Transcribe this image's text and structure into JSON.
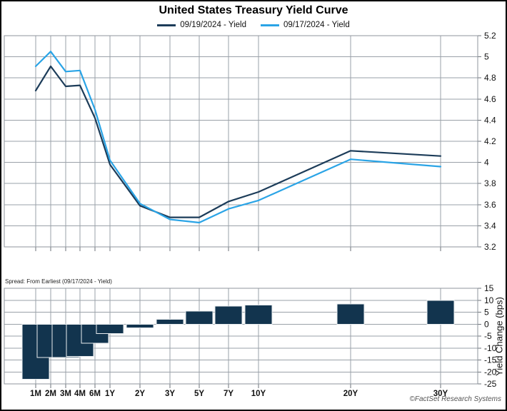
{
  "title": "United States Treasury Yield Curve",
  "legend": [
    {
      "label": "09/19/2024 - Yield",
      "color": "#1C3C59"
    },
    {
      "label": "09/17/2024 - Yield",
      "color": "#2AA4E6"
    }
  ],
  "spread_label": "Spread: From Earliest (09/17/2024 - Yield)",
  "credit": "©FactSet Research Systems",
  "colors": {
    "series_dark_navy": "#1C3C59",
    "series_light_blue": "#2AA4E6",
    "bar_fill": "#12344E",
    "gridline": "#9aa1a8",
    "axis_text": "#111111"
  },
  "chart_data": [
    {
      "type": "line",
      "title": "United States Treasury Yield Curve",
      "categories": [
        "1M",
        "2M",
        "3M",
        "4M",
        "6M",
        "1Y",
        "2Y",
        "3Y",
        "5Y",
        "7Y",
        "10Y",
        "20Y",
        "30Y"
      ],
      "series": [
        {
          "name": "09/19/2024 - Yield",
          "color": "#1C3C59",
          "values": [
            4.68,
            4.91,
            4.72,
            4.73,
            4.42,
            3.98,
            3.59,
            3.48,
            3.48,
            3.63,
            3.72,
            4.11,
            4.06
          ]
        },
        {
          "name": "09/17/2024 - Yield",
          "color": "#2AA4E6",
          "values": [
            4.91,
            5.05,
            4.86,
            4.87,
            4.5,
            4.02,
            3.61,
            3.46,
            3.43,
            3.56,
            3.64,
            4.03,
            3.96
          ]
        }
      ],
      "xlabel": "",
      "ylabel": "",
      "ylim": [
        3.2,
        5.2
      ],
      "ytick_step": 0.2,
      "yaxis_side": "right",
      "grid": true,
      "legend_position": "top"
    },
    {
      "type": "bar",
      "title": "Spread: From Earliest (09/17/2024 - Yield)",
      "categories": [
        "1M",
        "2M",
        "3M",
        "4M",
        "6M",
        "1Y",
        "2Y",
        "3Y",
        "5Y",
        "7Y",
        "10Y",
        "20Y",
        "30Y"
      ],
      "values": [
        -23,
        -14,
        -14,
        -13.5,
        -8,
        -4,
        -1.5,
        2,
        5.5,
        7.5,
        8,
        8.5,
        10
      ],
      "xlabel": "",
      "ylabel": "Yield Change (bps)",
      "ylim": [
        -25,
        15
      ],
      "ytick_step": 5,
      "yaxis_side": "right",
      "grid": true,
      "bar_color": "#12344E"
    }
  ]
}
